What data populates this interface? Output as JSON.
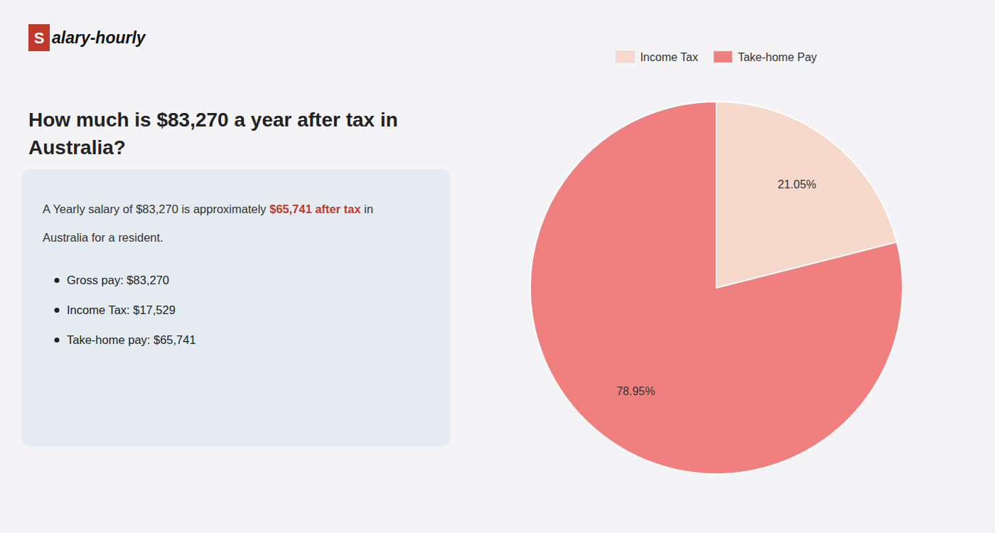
{
  "chart_data": {
    "type": "pie",
    "title": "How much is $83,270 a year after tax in\nAustralia?",
    "categories": [
      "Income Tax",
      "Take-home Pay"
    ],
    "values": [
      21.05,
      78.95
    ],
    "value_labels": [
      "21.05%",
      "78.95%"
    ],
    "colors": [
      "#f7d9cc",
      "#f08080"
    ],
    "data_labels": true,
    "legend": "top",
    "annotations": [
      "S",
      "alary-hourly",
      "A Yearly salary of $83,270 is approximately ",
      "$65,741 after tax",
      " in",
      "Australia for a resident.",
      "Gross pay: $83,270",
      "Income Tax: $17,529",
      "Take-home pay: $65,741"
    ]
  }
}
